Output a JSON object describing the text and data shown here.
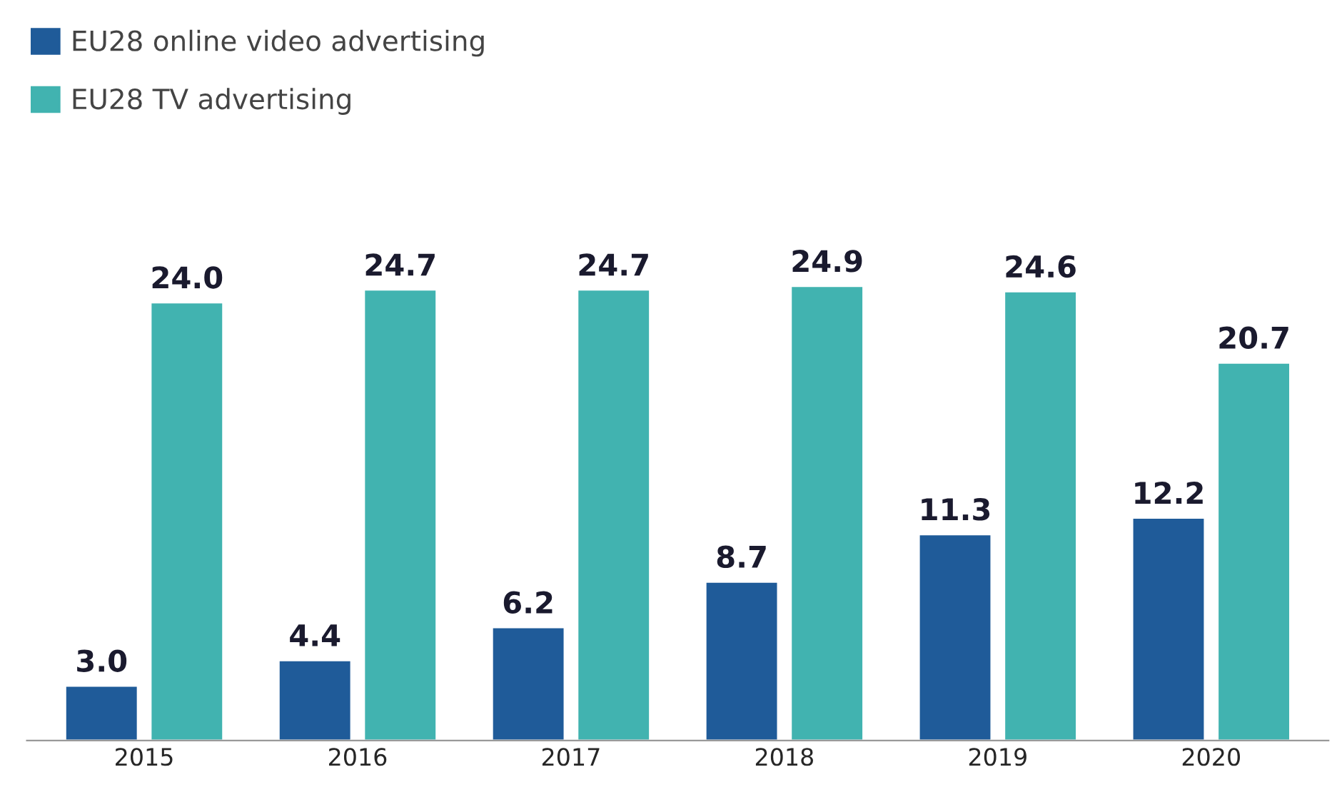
{
  "chart_data": {
    "type": "bar",
    "categories": [
      "2015",
      "2016",
      "2017",
      "2018",
      "2019",
      "2020"
    ],
    "series": [
      {
        "name": "EU28 online video advertising",
        "color": "#1f5b99",
        "values": [
          3.0,
          4.4,
          6.2,
          8.7,
          11.3,
          12.2
        ],
        "value_labels": [
          "3.0",
          "4.4",
          "6.2",
          "8.7",
          "11.3",
          "12.2"
        ]
      },
      {
        "name": "EU28 TV advertising",
        "color": "#41b3b0",
        "values": [
          24.0,
          24.7,
          24.7,
          24.9,
          24.6,
          20.7
        ],
        "value_labels": [
          "24.0",
          "24.7",
          "24.7",
          "24.9",
          "24.6",
          "20.7"
        ]
      }
    ],
    "legend": "top left",
    "tick_labels": "x",
    "grid": false
  }
}
